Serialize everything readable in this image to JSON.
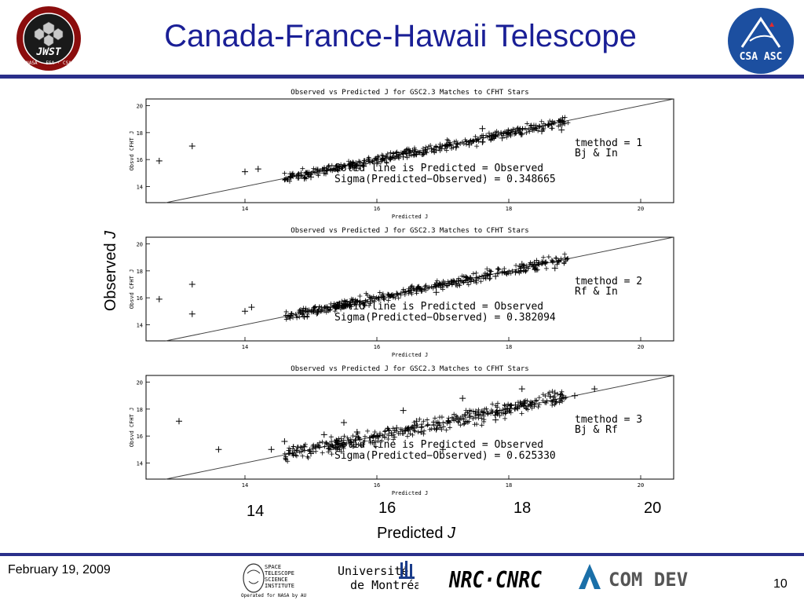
{
  "header": {
    "title": "Canada-France-Hawaii Telescope"
  },
  "logos": {
    "jwst": {
      "name": "jwst-logo",
      "text": "James Webb Space Telescope · JWST · NASA · ESA · CSA"
    },
    "csa": {
      "name": "csa-logo",
      "text": "CSA ASC"
    },
    "stsci": "SPACE TELESCOPE SCIENCE INSTITUTE · Operated for NASA by AURA",
    "montreal": "Université de Montréal",
    "nrc": "NRC·CNRC",
    "comdev": "COM DEV"
  },
  "footer": {
    "date": "February 19, 2009",
    "page": "10"
  },
  "axes_outer": {
    "ylabel": "Observed",
    "ylabel_italic": "J",
    "xlabel": "Predicted",
    "xlabel_italic": "J",
    "xticks": [
      "14",
      "16",
      "18",
      "20"
    ]
  },
  "colors": {
    "accent": "#1a1f96",
    "rule": "#2a2f8a"
  },
  "chart_data": [
    {
      "type": "scatter",
      "title": "Observed vs Predicted J for GSC2.3 Matches to CFHT Stars",
      "xlabel": "Predicted J",
      "ylabel": "Obsvd CFHT J",
      "xlim": [
        12.5,
        20.5
      ],
      "ylim": [
        12.8,
        20.5
      ],
      "xticks": [
        "14",
        "16",
        "18",
        "20"
      ],
      "yticks": [
        "14",
        "16",
        "18",
        "20"
      ],
      "grid": false,
      "reference_line": "y = x",
      "annotations": [
        "tmethod = 1",
        "Bj & In",
        "Solid line is Predicted = Observed",
        "Sigma(Predicted−Observed) = 0.348665"
      ],
      "sigma": 0.348665,
      "x": [
        12.7,
        13.2,
        14.0,
        14.2,
        14.9,
        15.0,
        15.2,
        15.4,
        15.6,
        15.8,
        16.0,
        16.2,
        16.4,
        16.6,
        16.9,
        17.2,
        17.4,
        17.6,
        17.9,
        18.2,
        18.5,
        18.8,
        17.6,
        18.6
      ],
      "y": [
        15.9,
        17.0,
        15.1,
        15.3,
        14.6,
        14.7,
        15.0,
        15.3,
        15.6,
        15.5,
        15.7,
        16.1,
        16.2,
        16.4,
        16.7,
        16.9,
        17.1,
        17.3,
        17.6,
        17.9,
        18.1,
        18.2,
        18.3,
        18.6
      ]
    },
    {
      "type": "scatter",
      "title": "Observed vs Predicted J for GSC2.3 Matches to CFHT Stars",
      "xlabel": "Predicted J",
      "ylabel": "Obsvd CFHT J",
      "xlim": [
        12.5,
        20.5
      ],
      "ylim": [
        12.8,
        20.5
      ],
      "xticks": [
        "14",
        "16",
        "18",
        "20"
      ],
      "yticks": [
        "14",
        "16",
        "18",
        "20"
      ],
      "grid": false,
      "reference_line": "y = x",
      "annotations": [
        "tmethod = 2",
        "Rf & In",
        "Solid line is Predicted = Observed",
        "Sigma(Predicted−Observed) = 0.382094"
      ],
      "sigma": 0.382094,
      "x": [
        12.7,
        13.2,
        13.2,
        14.0,
        14.1,
        14.9,
        15.1,
        15.3,
        15.6,
        15.9,
        16.1,
        16.3,
        16.6,
        16.9,
        17.2,
        17.5,
        17.8,
        18.1,
        18.4,
        18.7,
        16.9,
        18.2
      ],
      "y": [
        15.9,
        17.0,
        14.8,
        15.0,
        15.3,
        14.6,
        14.9,
        15.3,
        15.5,
        15.7,
        16.0,
        16.3,
        16.5,
        16.8,
        17.0,
        17.3,
        17.6,
        17.9,
        18.1,
        18.2,
        16.4,
        18.5
      ]
    },
    {
      "type": "scatter",
      "title": "Observed vs Predicted J for GSC2.3 Matches to CFHT Stars",
      "xlabel": "Predicted J",
      "ylabel": "Obsvd CFHT J",
      "xlim": [
        12.5,
        20.5
      ],
      "ylim": [
        12.8,
        20.5
      ],
      "xticks": [
        "14",
        "16",
        "18",
        "20"
      ],
      "yticks": [
        "14",
        "16",
        "18",
        "20"
      ],
      "grid": false,
      "reference_line": "y = x",
      "annotations": [
        "tmethod = 3",
        "Bj & Rf",
        "Solid line is Predicted = Observed",
        "Sigma(Predicted−Observed) = 0.625330"
      ],
      "sigma": 0.62533,
      "x": [
        13.0,
        13.6,
        14.4,
        14.6,
        14.9,
        15.2,
        15.4,
        15.7,
        16.0,
        16.3,
        16.6,
        16.9,
        17.2,
        17.5,
        17.8,
        18.1,
        18.4,
        18.7,
        19.0,
        19.3,
        15.5,
        16.4,
        17.3,
        18.2,
        17.0,
        15.0
      ],
      "y": [
        17.1,
        15.0,
        15.0,
        15.6,
        15.2,
        16.1,
        15.6,
        16.3,
        16.0,
        16.6,
        17.1,
        16.5,
        17.3,
        17.8,
        17.2,
        18.3,
        18.6,
        19.2,
        19.0,
        19.5,
        17.0,
        17.9,
        18.8,
        19.5,
        15.0,
        14.7
      ]
    }
  ]
}
